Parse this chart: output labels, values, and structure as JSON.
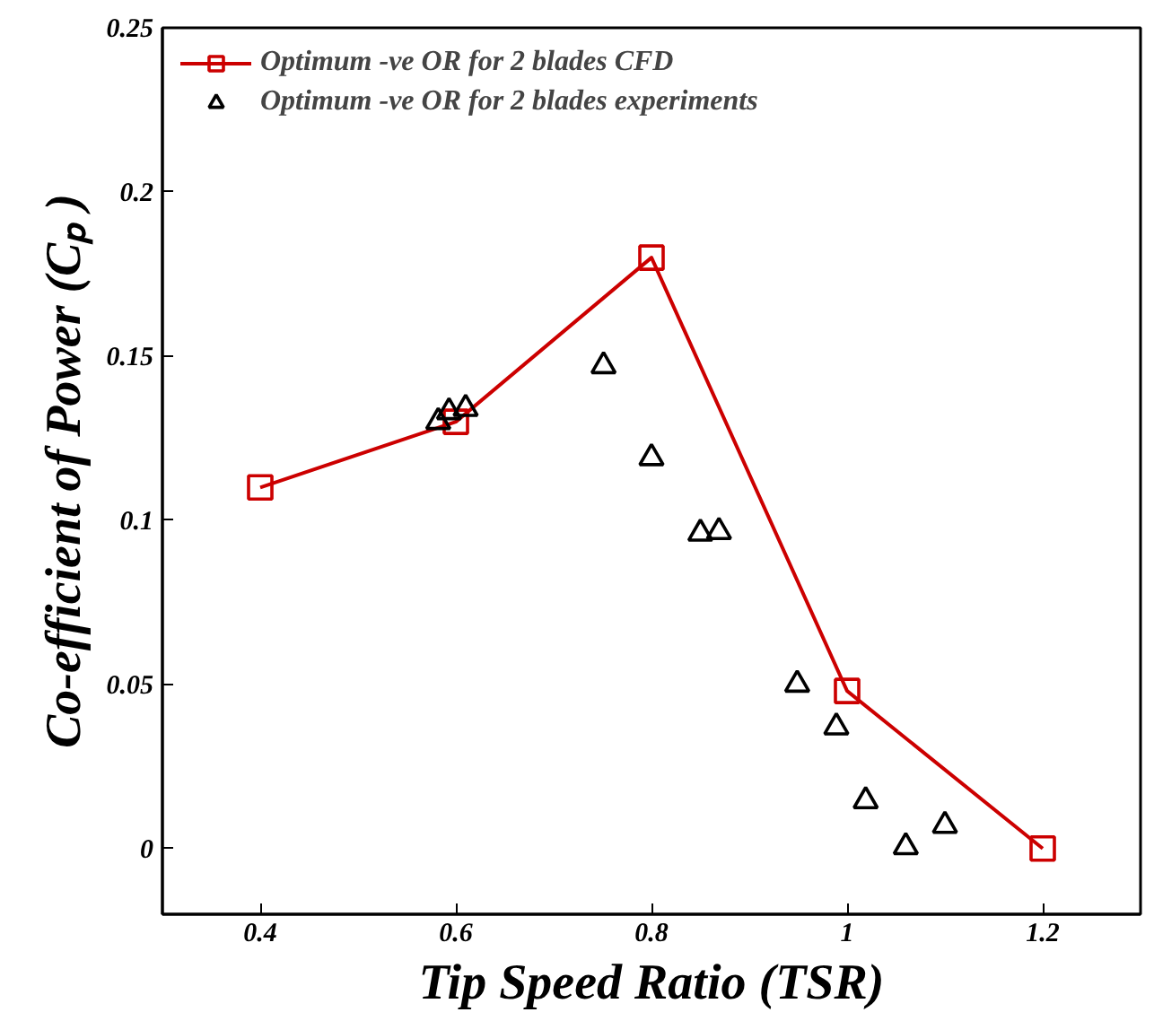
{
  "chart_data": {
    "type": "line",
    "xlabel": "Tip Speed Ratio (TSR)",
    "ylabel": "Co-efficient of Power (Cₚ )",
    "xlim": [
      0.3,
      1.3
    ],
    "ylim": [
      -0.02,
      0.25
    ],
    "xticks": [
      0.4,
      0.6,
      0.8,
      1,
      1.2
    ],
    "yticks": [
      0,
      0.05,
      0.1,
      0.15,
      0.2,
      0.25
    ],
    "grid": false,
    "legend": "top left",
    "series": [
      {
        "name": "Optimum -ve OR for 2 blades CFD",
        "color": "#cc0000",
        "marker": "square",
        "line_style": "solid",
        "x": [
          0.4,
          0.6,
          0.8,
          1.0,
          1.2
        ],
        "values": [
          0.11,
          0.13,
          0.18,
          0.048,
          0.0
        ]
      },
      {
        "name": "Optimum -ve OR for 2 blades experiments",
        "type": "scatter",
        "color": "#000000",
        "marker": "triangle",
        "x": [
          0.582,
          0.593,
          0.61,
          0.751,
          0.8,
          0.85,
          0.869,
          0.949,
          0.989,
          1.019,
          1.06,
          1.1
        ],
        "values": [
          0.13,
          0.133,
          0.134,
          0.147,
          0.119,
          0.096,
          0.0965,
          0.05,
          0.037,
          0.0145,
          0.0005,
          0.007
        ]
      }
    ]
  }
}
